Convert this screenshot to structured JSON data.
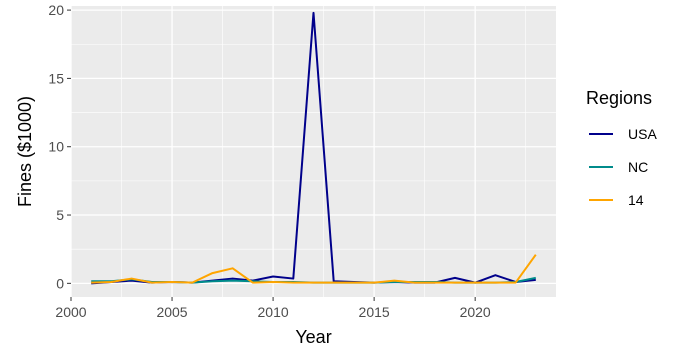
{
  "chart_data": {
    "type": "line",
    "xlabel": "Year",
    "ylabel": "Fines ($1000)",
    "xlim": [
      2000,
      2024
    ],
    "ylim": [
      -1,
      20.3
    ],
    "x_ticks": [
      2000,
      2005,
      2010,
      2015,
      2020
    ],
    "y_ticks": [
      0,
      5,
      10,
      15,
      20
    ],
    "grid": true,
    "panel_background": "#ebebeb",
    "legend": {
      "title": "Regions",
      "placement": "right"
    },
    "x": [
      2001,
      2002,
      2003,
      2004,
      2005,
      2006,
      2007,
      2008,
      2009,
      2010,
      2011,
      2012,
      2013,
      2014,
      2015,
      2016,
      2017,
      2018,
      2019,
      2020,
      2021,
      2022,
      2023
    ],
    "series": [
      {
        "name": "USA",
        "color": "#00008b",
        "values": [
          0.0,
          0.1,
          0.2,
          0.05,
          0.1,
          0.05,
          0.2,
          0.35,
          0.2,
          0.5,
          0.35,
          19.8,
          0.15,
          0.1,
          0.05,
          0.1,
          0.05,
          0.05,
          0.4,
          0.05,
          0.6,
          0.1,
          0.25
        ]
      },
      {
        "name": "NC",
        "color": "#008b8b",
        "values": [
          0.15,
          0.15,
          0.3,
          0.1,
          0.1,
          0.05,
          0.15,
          0.2,
          0.15,
          0.1,
          0.1,
          0.05,
          0.05,
          0.05,
          0.05,
          0.1,
          0.1,
          0.1,
          0.05,
          0.05,
          0.05,
          0.1,
          0.4
        ]
      },
      {
        "name": "14",
        "color": "#ffa500",
        "values": [
          0.05,
          0.1,
          0.35,
          0.05,
          0.1,
          0.05,
          0.75,
          1.1,
          0.05,
          0.1,
          0.05,
          0.05,
          0.05,
          0.05,
          0.05,
          0.2,
          0.05,
          0.05,
          0.05,
          0.05,
          0.05,
          0.05,
          2.1
        ]
      }
    ]
  }
}
